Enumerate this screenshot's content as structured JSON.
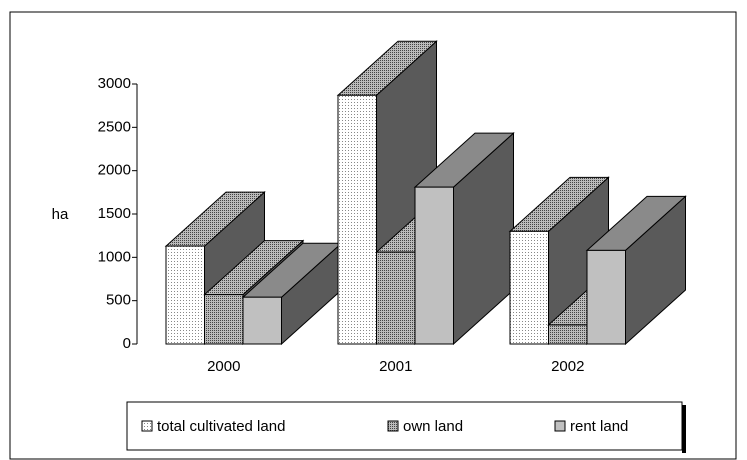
{
  "chart_data": {
    "type": "bar3d",
    "y_label": "ha",
    "categories": [
      "2000",
      "2001",
      "2002"
    ],
    "series": [
      {
        "name": "total cultivated land",
        "color": "#f2f2f2",
        "values": [
          1130,
          2870,
          1300
        ]
      },
      {
        "name": "own land",
        "color": "#9a9a9a",
        "values": [
          570,
          1060,
          220
        ]
      },
      {
        "name": "rent land",
        "color": "#c0c0c0",
        "values": [
          540,
          1810,
          1080
        ]
      }
    ],
    "ylim": [
      0,
      3000
    ],
    "yticks": [
      0,
      500,
      1000,
      1500,
      2000,
      2500,
      3000
    ],
    "legend": "bottom"
  }
}
